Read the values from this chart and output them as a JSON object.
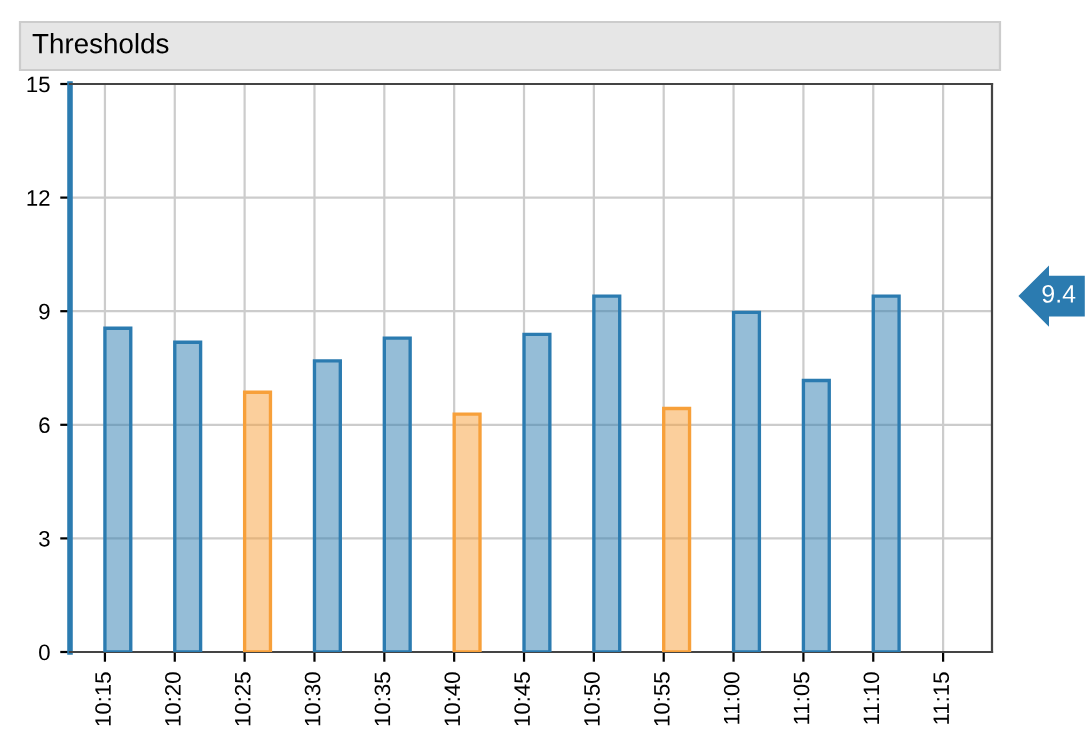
{
  "chart_data": {
    "type": "bar",
    "title": "Thresholds",
    "categories": [
      "10:15",
      "10:20",
      "10:25",
      "10:30",
      "10:35",
      "10:40",
      "10:45",
      "10:50",
      "10:55",
      "11:00",
      "11:05",
      "11:10",
      "11:15"
    ],
    "values": [
      8.55,
      8.18,
      6.86,
      7.69,
      8.29,
      6.28,
      8.39,
      9.4,
      6.43,
      8.97,
      7.17,
      9.4,
      null
    ],
    "colors": [
      "#2b7bb0",
      "#2b7bb0",
      "#f7a03a",
      "#2b7bb0",
      "#2b7bb0",
      "#f7a03a",
      "#2b7bb0",
      "#2b7bb0",
      "#f7a03a",
      "#2b7bb0",
      "#2b7bb0",
      "#2b7bb0",
      "#2b7bb0"
    ],
    "ylim": [
      0,
      15
    ],
    "yticks": [
      0,
      3,
      6,
      9,
      12,
      15
    ],
    "grid": true,
    "annotations": [
      "9.4"
    ]
  }
}
